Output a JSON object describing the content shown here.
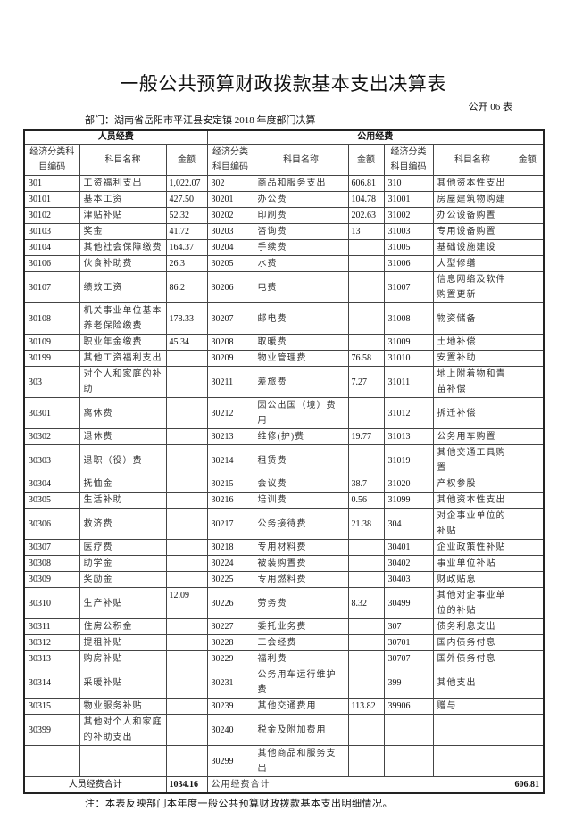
{
  "title": "一般公共预算财政拨款基本支出决算表",
  "table_no": "公开 06 表",
  "department": "部门：湖南省岳阳市平江县安定镇 2018 年度部门决算",
  "headers": {
    "personnel": "人员经费",
    "public": "公用经费",
    "code": "经济分类科目编码",
    "name": "科目名称",
    "amount": "金额"
  },
  "rows": [
    [
      "301",
      "工资福利支出",
      "1,022.07",
      "302",
      "商品和服务支出",
      "606.81",
      "310",
      "其他资本性支出",
      ""
    ],
    [
      "30101",
      "基本工资",
      "427.50",
      "30201",
      "办公费",
      "104.78",
      "31001",
      "房屋建筑物购建",
      ""
    ],
    [
      "30102",
      "津贴补贴",
      "52.32",
      "30202",
      "印刷费",
      "202.63",
      "31002",
      "办公设备购置",
      ""
    ],
    [
      "30103",
      "奖金",
      "41.72",
      "30203",
      "咨询费",
      "13",
      "31003",
      "专用设备购置",
      ""
    ],
    [
      "30104",
      "其他社会保障缴费",
      "164.37",
      "30204",
      "手续费",
      "",
      "31005",
      "基础设施建设",
      ""
    ],
    [
      "30106",
      "伙食补助费",
      "26.3",
      "30205",
      "水费",
      "",
      "31006",
      "大型修缮",
      ""
    ],
    [
      "30107",
      "绩效工资",
      "86.2",
      "30206",
      "电费",
      "",
      "31007",
      "信息网络及软件购置更新",
      ""
    ],
    [
      "30108",
      "机关事业单位基本养老保险缴费",
      "178.33",
      "30207",
      "邮电费",
      "",
      "31008",
      "物资储备",
      ""
    ],
    [
      "30109",
      "职业年金缴费",
      "45.34",
      "30208",
      "取暖费",
      "",
      "31009",
      "土地补偿",
      ""
    ],
    [
      "30199",
      "其他工资福利支出",
      "",
      "30209",
      "物业管理费",
      "76.58",
      "31010",
      "安置补助",
      ""
    ],
    [
      "303",
      "对个人和家庭的补助",
      "",
      "30211",
      "差旅费",
      "7.27",
      "31011",
      "地上附着物和青苗补偿",
      ""
    ],
    [
      "30301",
      "离休费",
      "",
      "30212",
      "因公出国（境）费用",
      "",
      "31012",
      "拆迁补偿",
      ""
    ],
    [
      "30302",
      "退休费",
      "",
      "30213",
      "维修(护)费",
      "19.77",
      "31013",
      "公务用车购置",
      ""
    ],
    [
      "30303",
      "退职（役）费",
      "",
      "30214",
      "租赁费",
      "",
      "31019",
      "其他交通工具购置",
      ""
    ],
    [
      "30304",
      "抚恤金",
      "",
      "30215",
      "会议费",
      "38.7",
      "31020",
      "产权参股",
      ""
    ],
    [
      "30305",
      "生活补助",
      "",
      "30216",
      "培训费",
      "0.56",
      "31099",
      "其他资本性支出",
      ""
    ],
    [
      "30306",
      "救济费",
      "",
      "30217",
      "公务接待费",
      "21.38",
      "304",
      "对企事业单位的补贴",
      ""
    ],
    [
      "30307",
      "医疗费",
      "",
      "30218",
      "专用材料费",
      "",
      "30401",
      "企业政策性补贴",
      ""
    ],
    [
      "30308",
      "助学金",
      "",
      "30224",
      "被装购置费",
      "",
      "30402",
      "事业单位补贴",
      ""
    ],
    [
      "30309",
      "奖励金",
      "",
      "30225",
      "专用燃料费",
      "",
      "30403",
      "财政贴息",
      ""
    ],
    [
      "30310",
      "生产补贴",
      "12.09",
      "30226",
      "劳务费",
      "8.32",
      "30499",
      "其他对企事业单位的补贴",
      ""
    ],
    [
      "30311",
      "住房公积金",
      "",
      "30227",
      "委托业务费",
      "",
      "307",
      "债务利息支出",
      ""
    ],
    [
      "30312",
      "提租补贴",
      "",
      "30228",
      "工会经费",
      "",
      "30701",
      "国内债务付息",
      ""
    ],
    [
      "30313",
      "购房补贴",
      "",
      "30229",
      "福利费",
      "",
      "30707",
      "国外债务付息",
      ""
    ],
    [
      "30314",
      "采暖补贴",
      "",
      "30231",
      "公务用车运行维护费",
      "",
      "399",
      "其他支出",
      ""
    ],
    [
      "30315",
      "物业服务补贴",
      "",
      "30239",
      "其他交通费用",
      "113.82",
      "39906",
      "赠与",
      ""
    ],
    [
      "30399",
      "其他对个人和家庭的补助支出",
      "",
      "30240",
      "税金及附加费用",
      "",
      "",
      "",
      ""
    ],
    [
      "",
      "",
      "",
      "30299",
      "其他商品和服务支出",
      "",
      "",
      "",
      ""
    ]
  ],
  "totals": {
    "personnel_label": "人员经费合计",
    "personnel_value": "1034.16",
    "public_label": "公用经费合计",
    "public_value": "606.81"
  },
  "note": "注：本表反映部门本年度一般公共预算财政拨款基本支出明细情况。"
}
